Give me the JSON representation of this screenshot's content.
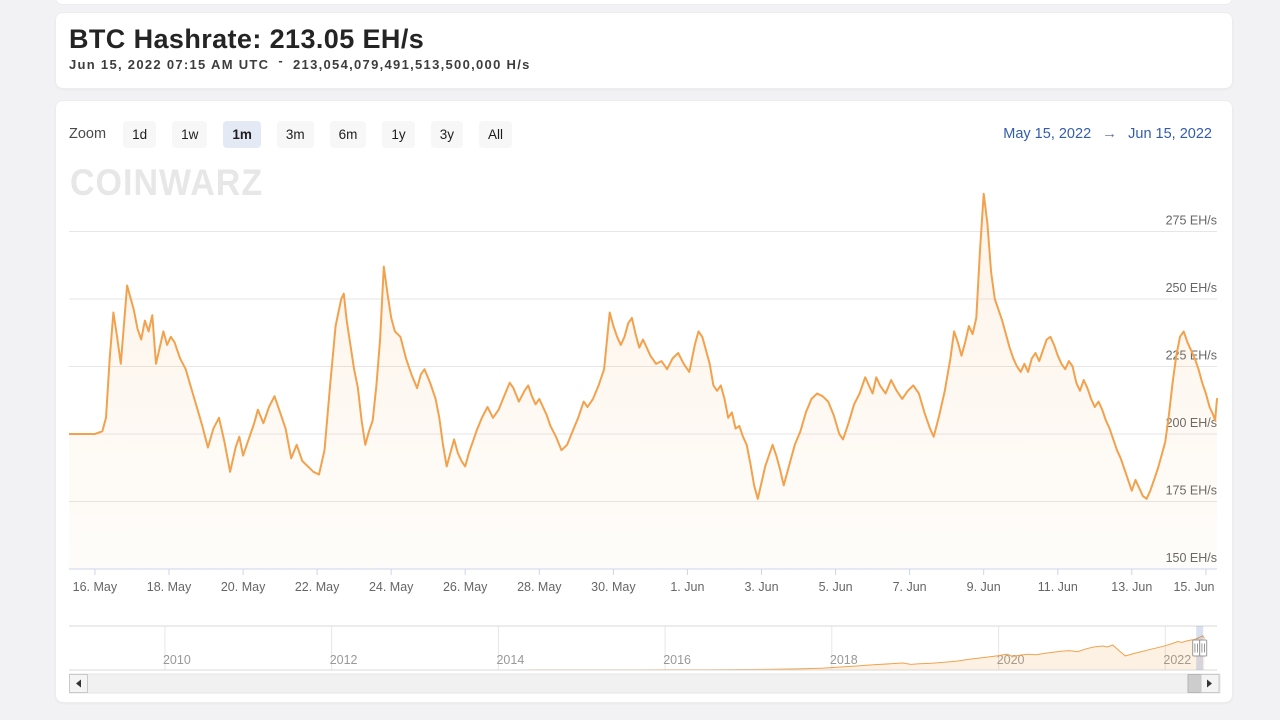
{
  "header": {
    "title": "BTC Hashrate: 213.05 EH/s",
    "subtitle_date": "Jun 15, 2022 07:15 AM UTC",
    "subtitle_sep": "-",
    "subtitle_value": "213,054,079,491,513,500,000 H/s"
  },
  "range_selector": {
    "zoom_label": "Zoom",
    "buttons": [
      {
        "label": "1d",
        "selected": false
      },
      {
        "label": "1w",
        "selected": false
      },
      {
        "label": "1m",
        "selected": true
      },
      {
        "label": "3m",
        "selected": false
      },
      {
        "label": "6m",
        "selected": false
      },
      {
        "label": "1y",
        "selected": false
      },
      {
        "label": "3y",
        "selected": false
      },
      {
        "label": "All",
        "selected": false
      }
    ],
    "from_date": "May 15, 2022",
    "arrow": "→",
    "to_date": "Jun 15, 2022"
  },
  "watermark": "CoinWarz",
  "scrollbar": {
    "left_arrow": "left",
    "right_arrow": "right"
  },
  "colors": {
    "line": "#f2a24d",
    "grid": "#e6e6e6",
    "axis": "#ccd6eb",
    "axis_label": "#666666",
    "nav_label": "#999999",
    "mask": "rgba(102,133,194,0.25)",
    "date_link": "#335cad"
  },
  "chart_data": {
    "type": "line",
    "series_name": "BTC Hashrate",
    "unit": "EH/s",
    "x_range": [
      "May 15, 2022 07:15 UTC",
      "Jun 15, 2022 07:15 UTC"
    ],
    "ylim": [
      150,
      295
    ],
    "grid": true,
    "legend": false,
    "y_axis": {
      "ticks": [
        {
          "value": 150,
          "label": "150 EH/s"
        },
        {
          "value": 175,
          "label": "175 EH/s"
        },
        {
          "value": 200,
          "label": "200 EH/s"
        },
        {
          "value": 225,
          "label": "225 EH/s"
        },
        {
          "value": 250,
          "label": "250 EH/s"
        },
        {
          "value": 275,
          "label": "275 EH/s"
        }
      ]
    },
    "x_ticks": [
      {
        "day": 0.7,
        "label": "16. May"
      },
      {
        "day": 2.7,
        "label": "18. May"
      },
      {
        "day": 4.7,
        "label": "20. May"
      },
      {
        "day": 6.7,
        "label": "22. May"
      },
      {
        "day": 8.7,
        "label": "24. May"
      },
      {
        "day": 10.7,
        "label": "26. May"
      },
      {
        "day": 12.7,
        "label": "28. May"
      },
      {
        "day": 14.7,
        "label": "30. May"
      },
      {
        "day": 16.7,
        "label": "1. Jun"
      },
      {
        "day": 18.7,
        "label": "3. Jun"
      },
      {
        "day": 20.7,
        "label": "5. Jun"
      },
      {
        "day": 22.7,
        "label": "7. Jun"
      },
      {
        "day": 24.7,
        "label": "9. Jun"
      },
      {
        "day": 26.7,
        "label": "11. Jun"
      },
      {
        "day": 28.7,
        "label": "13. Jun"
      },
      {
        "day": 30.7,
        "label": "15. Jun"
      }
    ],
    "points_desc": "pairs of [days since May 15 2022 07:15 UTC, hashrate EH/s]",
    "points": [
      [
        0,
        200
      ],
      [
        0.35,
        200
      ],
      [
        0.7,
        200
      ],
      [
        0.9,
        201
      ],
      [
        1.0,
        206
      ],
      [
        1.1,
        228
      ],
      [
        1.2,
        245
      ],
      [
        1.3,
        236
      ],
      [
        1.4,
        226
      ],
      [
        1.5,
        243
      ],
      [
        1.57,
        255
      ],
      [
        1.65,
        251
      ],
      [
        1.75,
        246
      ],
      [
        1.85,
        239
      ],
      [
        1.95,
        235
      ],
      [
        2.05,
        242
      ],
      [
        2.15,
        238
      ],
      [
        2.25,
        244
      ],
      [
        2.35,
        226
      ],
      [
        2.45,
        232
      ],
      [
        2.55,
        238
      ],
      [
        2.65,
        233
      ],
      [
        2.75,
        236
      ],
      [
        2.85,
        234
      ],
      [
        3.0,
        228
      ],
      [
        3.15,
        224
      ],
      [
        3.3,
        217
      ],
      [
        3.45,
        210
      ],
      [
        3.6,
        203
      ],
      [
        3.75,
        195
      ],
      [
        3.9,
        202
      ],
      [
        4.05,
        206
      ],
      [
        4.2,
        197
      ],
      [
        4.35,
        186
      ],
      [
        4.5,
        195
      ],
      [
        4.6,
        199
      ],
      [
        4.7,
        192
      ],
      [
        4.85,
        198
      ],
      [
        5.0,
        204
      ],
      [
        5.1,
        209
      ],
      [
        5.25,
        204
      ],
      [
        5.4,
        210
      ],
      [
        5.55,
        214
      ],
      [
        5.7,
        208
      ],
      [
        5.85,
        202
      ],
      [
        6.0,
        191
      ],
      [
        6.15,
        196
      ],
      [
        6.3,
        190
      ],
      [
        6.45,
        188
      ],
      [
        6.6,
        186
      ],
      [
        6.75,
        185
      ],
      [
        6.9,
        194
      ],
      [
        7.05,
        218
      ],
      [
        7.2,
        240
      ],
      [
        7.35,
        250
      ],
      [
        7.42,
        252
      ],
      [
        7.5,
        242
      ],
      [
        7.6,
        233
      ],
      [
        7.7,
        224
      ],
      [
        7.8,
        217
      ],
      [
        7.9,
        205
      ],
      [
        8.0,
        196
      ],
      [
        8.1,
        201
      ],
      [
        8.2,
        205
      ],
      [
        8.3,
        218
      ],
      [
        8.4,
        235
      ],
      [
        8.5,
        262
      ],
      [
        8.6,
        252
      ],
      [
        8.7,
        243
      ],
      [
        8.8,
        238
      ],
      [
        8.95,
        236
      ],
      [
        9.1,
        228
      ],
      [
        9.25,
        222
      ],
      [
        9.4,
        217
      ],
      [
        9.5,
        222
      ],
      [
        9.6,
        224
      ],
      [
        9.75,
        219
      ],
      [
        9.9,
        213
      ],
      [
        10.0,
        206
      ],
      [
        10.1,
        196
      ],
      [
        10.2,
        188
      ],
      [
        10.3,
        193
      ],
      [
        10.4,
        198
      ],
      [
        10.5,
        193
      ],
      [
        10.6,
        190
      ],
      [
        10.7,
        188
      ],
      [
        10.8,
        193
      ],
      [
        10.9,
        197
      ],
      [
        11.0,
        201
      ],
      [
        11.15,
        206
      ],
      [
        11.3,
        210
      ],
      [
        11.45,
        206
      ],
      [
        11.6,
        209
      ],
      [
        11.75,
        214
      ],
      [
        11.9,
        219
      ],
      [
        12.0,
        217
      ],
      [
        12.15,
        212
      ],
      [
        12.3,
        216
      ],
      [
        12.4,
        218
      ],
      [
        12.5,
        214
      ],
      [
        12.6,
        211
      ],
      [
        12.7,
        213
      ],
      [
        12.8,
        210
      ],
      [
        12.9,
        207
      ],
      [
        13.0,
        203
      ],
      [
        13.15,
        199
      ],
      [
        13.3,
        194
      ],
      [
        13.45,
        196
      ],
      [
        13.6,
        201
      ],
      [
        13.75,
        206
      ],
      [
        13.9,
        212
      ],
      [
        14.0,
        210
      ],
      [
        14.15,
        213
      ],
      [
        14.3,
        218
      ],
      [
        14.45,
        224
      ],
      [
        14.6,
        245
      ],
      [
        14.7,
        240
      ],
      [
        14.8,
        236
      ],
      [
        14.9,
        233
      ],
      [
        15.0,
        236
      ],
      [
        15.1,
        241
      ],
      [
        15.2,
        243
      ],
      [
        15.3,
        237
      ],
      [
        15.4,
        232
      ],
      [
        15.5,
        235
      ],
      [
        15.6,
        232
      ],
      [
        15.7,
        229
      ],
      [
        15.85,
        226
      ],
      [
        16.0,
        227
      ],
      [
        16.15,
        224
      ],
      [
        16.3,
        228
      ],
      [
        16.45,
        230
      ],
      [
        16.6,
        226
      ],
      [
        16.75,
        223
      ],
      [
        16.9,
        233
      ],
      [
        17.0,
        238
      ],
      [
        17.1,
        236
      ],
      [
        17.2,
        231
      ],
      [
        17.3,
        226
      ],
      [
        17.4,
        218
      ],
      [
        17.5,
        216
      ],
      [
        17.6,
        218
      ],
      [
        17.7,
        213
      ],
      [
        17.8,
        206
      ],
      [
        17.9,
        208
      ],
      [
        18.0,
        202
      ],
      [
        18.1,
        203
      ],
      [
        18.2,
        199
      ],
      [
        18.3,
        196
      ],
      [
        18.4,
        189
      ],
      [
        18.5,
        181
      ],
      [
        18.6,
        176
      ],
      [
        18.7,
        182
      ],
      [
        18.8,
        188
      ],
      [
        18.9,
        192
      ],
      [
        19.0,
        196
      ],
      [
        19.1,
        192
      ],
      [
        19.2,
        187
      ],
      [
        19.3,
        181
      ],
      [
        19.4,
        186
      ],
      [
        19.5,
        191
      ],
      [
        19.6,
        196
      ],
      [
        19.75,
        201
      ],
      [
        19.9,
        208
      ],
      [
        20.05,
        213
      ],
      [
        20.2,
        215
      ],
      [
        20.35,
        214
      ],
      [
        20.5,
        212
      ],
      [
        20.65,
        207
      ],
      [
        20.8,
        200
      ],
      [
        20.9,
        198
      ],
      [
        21.05,
        204
      ],
      [
        21.2,
        211
      ],
      [
        21.35,
        215
      ],
      [
        21.5,
        221
      ],
      [
        21.6,
        218
      ],
      [
        21.7,
        215
      ],
      [
        21.8,
        221
      ],
      [
        21.9,
        218
      ],
      [
        22.05,
        215
      ],
      [
        22.2,
        220
      ],
      [
        22.35,
        216
      ],
      [
        22.5,
        213
      ],
      [
        22.65,
        216
      ],
      [
        22.8,
        218
      ],
      [
        22.95,
        215
      ],
      [
        23.1,
        208
      ],
      [
        23.25,
        202
      ],
      [
        23.35,
        199
      ],
      [
        23.5,
        207
      ],
      [
        23.65,
        216
      ],
      [
        23.8,
        228
      ],
      [
        23.9,
        238
      ],
      [
        24.0,
        234
      ],
      [
        24.1,
        229
      ],
      [
        24.2,
        234
      ],
      [
        24.3,
        240
      ],
      [
        24.4,
        237
      ],
      [
        24.5,
        243
      ],
      [
        24.6,
        268
      ],
      [
        24.7,
        289
      ],
      [
        24.8,
        278
      ],
      [
        24.9,
        260
      ],
      [
        25.0,
        250
      ],
      [
        25.1,
        246
      ],
      [
        25.2,
        242
      ],
      [
        25.3,
        237
      ],
      [
        25.4,
        232
      ],
      [
        25.5,
        228
      ],
      [
        25.6,
        225
      ],
      [
        25.7,
        223
      ],
      [
        25.8,
        226
      ],
      [
        25.9,
        223
      ],
      [
        26.0,
        228
      ],
      [
        26.1,
        230
      ],
      [
        26.2,
        227
      ],
      [
        26.3,
        231
      ],
      [
        26.4,
        235
      ],
      [
        26.5,
        236
      ],
      [
        26.6,
        233
      ],
      [
        26.7,
        229
      ],
      [
        26.8,
        226
      ],
      [
        26.9,
        224
      ],
      [
        27.0,
        227
      ],
      [
        27.1,
        225
      ],
      [
        27.2,
        219
      ],
      [
        27.3,
        216
      ],
      [
        27.4,
        220
      ],
      [
        27.5,
        217
      ],
      [
        27.6,
        213
      ],
      [
        27.7,
        210
      ],
      [
        27.8,
        212
      ],
      [
        27.9,
        209
      ],
      [
        28.0,
        205
      ],
      [
        28.1,
        202
      ],
      [
        28.2,
        198
      ],
      [
        28.3,
        194
      ],
      [
        28.4,
        191
      ],
      [
        28.5,
        187
      ],
      [
        28.6,
        183
      ],
      [
        28.7,
        179
      ],
      [
        28.8,
        183
      ],
      [
        28.9,
        180
      ],
      [
        29.0,
        177
      ],
      [
        29.1,
        176
      ],
      [
        29.2,
        179
      ],
      [
        29.3,
        183
      ],
      [
        29.4,
        187
      ],
      [
        29.5,
        192
      ],
      [
        29.6,
        197
      ],
      [
        29.7,
        207
      ],
      [
        29.8,
        219
      ],
      [
        29.9,
        229
      ],
      [
        30.0,
        236
      ],
      [
        30.1,
        238
      ],
      [
        30.2,
        234
      ],
      [
        30.3,
        231
      ],
      [
        30.4,
        228
      ],
      [
        30.5,
        224
      ],
      [
        30.6,
        219
      ],
      [
        30.7,
        215
      ],
      [
        30.8,
        210
      ],
      [
        30.9,
        207
      ],
      [
        30.95,
        205
      ],
      [
        31.0,
        213
      ]
    ],
    "navigator": {
      "x_domain": [
        2008.85,
        2022.62
      ],
      "y_max": 290,
      "ticks": [
        {
          "year": 2010,
          "label": "2010"
        },
        {
          "year": 2012,
          "label": "2012"
        },
        {
          "year": 2014,
          "label": "2014"
        },
        {
          "year": 2016,
          "label": "2016"
        },
        {
          "year": 2018,
          "label": "2018"
        },
        {
          "year": 2020,
          "label": "2020"
        },
        {
          "year": 2022,
          "label": "2022"
        }
      ],
      "selected": {
        "from": 2022.37,
        "to": 2022.455
      },
      "points": [
        [
          2008.85,
          0
        ],
        [
          2009.5,
          0
        ],
        [
          2010,
          0
        ],
        [
          2010.5,
          0
        ],
        [
          2011,
          0.001
        ],
        [
          2011.5,
          0.001
        ],
        [
          2012,
          0.002
        ],
        [
          2012.5,
          0.003
        ],
        [
          2013,
          0.02
        ],
        [
          2013.5,
          0.1
        ],
        [
          2014,
          0.3
        ],
        [
          2014.5,
          0.4
        ],
        [
          2015,
          0.45
        ],
        [
          2015.5,
          0.5
        ],
        [
          2016,
          1.4
        ],
        [
          2016.5,
          1.8
        ],
        [
          2017,
          3.5
        ],
        [
          2017.3,
          5
        ],
        [
          2017.6,
          7.5
        ],
        [
          2017.9,
          13
        ],
        [
          2018.1,
          20
        ],
        [
          2018.3,
          27
        ],
        [
          2018.5,
          35
        ],
        [
          2018.7,
          42
        ],
        [
          2018.85,
          47
        ],
        [
          2018.95,
          38
        ],
        [
          2019.05,
          42
        ],
        [
          2019.2,
          46
        ],
        [
          2019.35,
          52
        ],
        [
          2019.5,
          60
        ],
        [
          2019.65,
          72
        ],
        [
          2019.8,
          83
        ],
        [
          2019.9,
          90
        ],
        [
          2020.0,
          97
        ],
        [
          2020.1,
          107
        ],
        [
          2020.17,
          92
        ],
        [
          2020.25,
          99
        ],
        [
          2020.35,
          106
        ],
        [
          2020.45,
          103
        ],
        [
          2020.55,
          112
        ],
        [
          2020.65,
          120
        ],
        [
          2020.75,
          126
        ],
        [
          2020.85,
          131
        ],
        [
          2020.95,
          124
        ],
        [
          2021.05,
          143
        ],
        [
          2021.15,
          156
        ],
        [
          2021.25,
          162
        ],
        [
          2021.3,
          155
        ],
        [
          2021.37,
          168
        ],
        [
          2021.45,
          128
        ],
        [
          2021.52,
          95
        ],
        [
          2021.6,
          108
        ],
        [
          2021.7,
          122
        ],
        [
          2021.8,
          136
        ],
        [
          2021.9,
          150
        ],
        [
          2022.0,
          164
        ],
        [
          2022.08,
          178
        ],
        [
          2022.15,
          192
        ],
        [
          2022.2,
          186
        ],
        [
          2022.27,
          198
        ],
        [
          2022.33,
          204
        ],
        [
          2022.38,
          212
        ],
        [
          2022.42,
          224
        ],
        [
          2022.45,
          230
        ],
        [
          2022.47,
          213
        ]
      ]
    }
  }
}
